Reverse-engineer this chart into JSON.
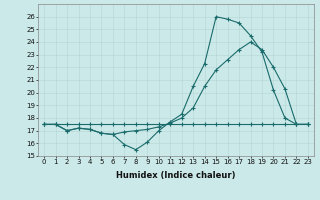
{
  "xlabel": "Humidex (Indice chaleur)",
  "background_color": "#cce9e9",
  "line_color": "#1a6b6b",
  "grid_color": "#b8d8d8",
  "ylim": [
    15,
    27
  ],
  "xlim": [
    -0.5,
    23.5
  ],
  "yticks": [
    15,
    16,
    17,
    18,
    19,
    20,
    21,
    22,
    23,
    24,
    25,
    26
  ],
  "xticks": [
    0,
    1,
    2,
    3,
    4,
    5,
    6,
    7,
    8,
    9,
    10,
    11,
    12,
    13,
    14,
    15,
    16,
    17,
    18,
    19,
    20,
    21,
    22,
    23
  ],
  "line1_x": [
    0,
    1,
    2,
    3,
    4,
    5,
    6,
    7,
    8,
    9,
    10,
    11,
    12,
    13,
    14,
    15,
    16,
    17,
    18,
    19,
    20,
    21,
    22,
    23
  ],
  "line1_y": [
    17.5,
    17.5,
    17.0,
    17.2,
    17.1,
    16.8,
    16.7,
    15.9,
    15.5,
    16.1,
    17.0,
    17.7,
    18.3,
    20.5,
    22.3,
    26.0,
    25.8,
    25.5,
    24.5,
    23.2,
    20.2,
    18.0,
    17.5,
    17.5
  ],
  "line2_x": [
    0,
    1,
    2,
    3,
    4,
    5,
    6,
    7,
    8,
    9,
    10,
    11,
    12,
    13,
    14,
    15,
    16,
    17,
    18,
    19,
    20,
    21,
    22,
    23
  ],
  "line2_y": [
    17.5,
    17.5,
    17.0,
    17.2,
    17.1,
    16.8,
    16.7,
    16.9,
    17.0,
    17.1,
    17.3,
    17.6,
    18.0,
    18.8,
    20.5,
    21.8,
    22.6,
    23.4,
    24.0,
    23.4,
    22.0,
    20.3,
    17.5,
    17.5
  ],
  "line3_x": [
    0,
    1,
    2,
    3,
    4,
    5,
    6,
    7,
    8,
    9,
    10,
    11,
    12,
    13,
    14,
    15,
    16,
    17,
    18,
    19,
    20,
    21,
    22,
    23
  ],
  "line3_y": [
    17.5,
    17.5,
    17.5,
    17.5,
    17.5,
    17.5,
    17.5,
    17.5,
    17.5,
    17.5,
    17.5,
    17.5,
    17.5,
    17.5,
    17.5,
    17.5,
    17.5,
    17.5,
    17.5,
    17.5,
    17.5,
    17.5,
    17.5,
    17.5
  ]
}
